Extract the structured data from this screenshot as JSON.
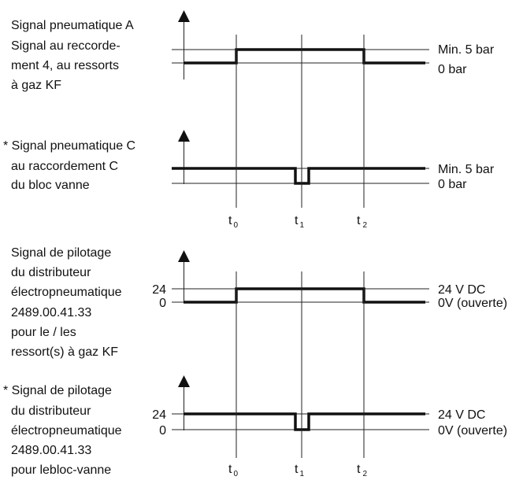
{
  "time_markers": [
    {
      "letter": "t",
      "sub": "0"
    },
    {
      "letter": "t",
      "sub": "1"
    },
    {
      "letter": "t",
      "sub": "2"
    }
  ],
  "panels": [
    {
      "id": "pneumatic_a",
      "label_lines": [
        "Signal pneumatique A",
        "Signal au reccorde-",
        "ment 4, au ressorts",
        "à gaz KF"
      ],
      "high_label": "Min. 5 bar",
      "low_label": "0 bar",
      "high_value": "",
      "low_value": ""
    },
    {
      "id": "pneumatic_c",
      "label_lines": [
        "* Signal pneumatique C",
        "au raccordement C",
        "du bloc vanne"
      ],
      "high_label": "Min. 5 bar",
      "low_label": "0 bar",
      "high_value": "",
      "low_value": ""
    },
    {
      "id": "control_kf",
      "label_lines": [
        "Signal de pilotage",
        "du distributeur",
        "électropneumatique",
        "2489.00.41.33",
        "pour le / les",
        "ressort(s) à gaz KF"
      ],
      "high_label": "24 V DC",
      "low_label": "0V (ouverte)",
      "high_value": "24",
      "low_value": "0"
    },
    {
      "id": "control_valve_block",
      "label_lines": [
        "* Signal de pilotage",
        "du distributeur",
        "électropneumatique",
        "2489.00.41.33",
        "pour lebloc-vanne"
      ],
      "high_label": "24 V DC",
      "low_label": "0V (ouverte)",
      "high_value": "24",
      "low_value": "0"
    }
  ]
}
